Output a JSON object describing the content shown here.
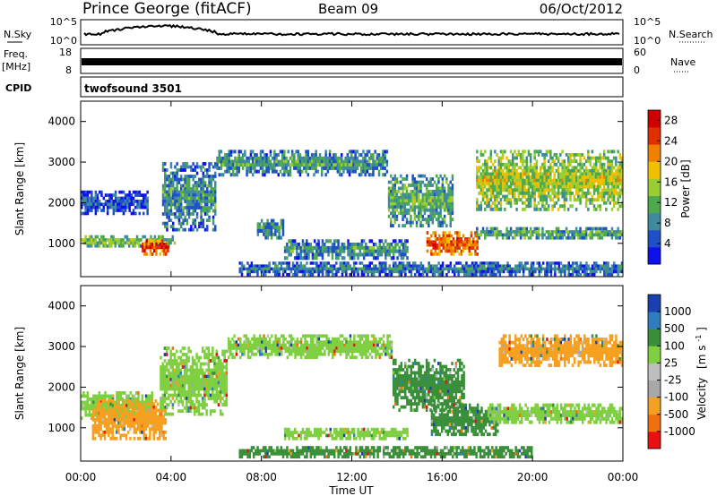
{
  "header": {
    "station": "Prince George (fitACF)",
    "beam": "Beam 09",
    "date": "06/Oct/2012"
  },
  "info_panels": {
    "nsky_label": "N.Sky",
    "nsearch_label": "N.Search",
    "noise_top": "10^5",
    "noise_bottom": "10^0",
    "freq_label_line1": "Freq.",
    "freq_label_line2": "[MHz]",
    "freq_top": "18",
    "freq_bottom": "8",
    "nave_label": "Nave",
    "nave_top": "60",
    "nave_bottom": "0",
    "cpid_label": "CPID",
    "cpid_value": "twofsound 3501"
  },
  "chart_data": [
    {
      "type": "heatmap",
      "name": "power",
      "ylabel": "Slant Range [km]",
      "xlabel": "Time UT",
      "x_ticks": [
        "00:00",
        "04:00",
        "08:00",
        "12:00",
        "16:00",
        "20:00",
        "00:00"
      ],
      "xlim": [
        0,
        24
      ],
      "ylim": [
        180,
        4500
      ],
      "y_ticks": [
        1000,
        2000,
        3000,
        4000
      ],
      "colorbar": {
        "label": "Power [dB]",
        "ticks": [
          4,
          8,
          12,
          16,
          20,
          24,
          28
        ],
        "range": [
          0,
          30
        ],
        "colors": [
          "#1010ee",
          "#2050c8",
          "#3f8a9f",
          "#4daa4d",
          "#9acd32",
          "#f0c000",
          "#f08000",
          "#e03000",
          "#d00000"
        ]
      },
      "bands": [
        {
          "t_start": 0.0,
          "t_end": 4.2,
          "range_start": 900,
          "range_end": 1200,
          "value": 14
        },
        {
          "t_start": 2.7,
          "t_end": 3.9,
          "range_start": 700,
          "range_end": 1100,
          "value": 26
        },
        {
          "t_start": 0.0,
          "t_end": 3.0,
          "range_start": 1700,
          "range_end": 2300,
          "value": 6
        },
        {
          "t_start": 3.6,
          "t_end": 6.0,
          "range_start": 1300,
          "range_end": 3000,
          "value": 10
        },
        {
          "t_start": 6.0,
          "t_end": 13.6,
          "range_start": 2650,
          "range_end": 3300,
          "value": 10
        },
        {
          "t_start": 13.6,
          "t_end": 16.5,
          "range_start": 1400,
          "range_end": 2700,
          "value": 12
        },
        {
          "t_start": 7.8,
          "t_end": 9.0,
          "range_start": 1100,
          "range_end": 1600,
          "value": 10
        },
        {
          "t_start": 9.0,
          "t_end": 14.5,
          "range_start": 600,
          "range_end": 1100,
          "value": 10
        },
        {
          "t_start": 15.3,
          "t_end": 17.6,
          "range_start": 700,
          "range_end": 1300,
          "value": 24
        },
        {
          "t_start": 17.5,
          "t_end": 24.0,
          "range_start": 1100,
          "range_end": 1400,
          "value": 12
        },
        {
          "t_start": 17.5,
          "t_end": 24.0,
          "range_start": 1800,
          "range_end": 3300,
          "value": 16
        },
        {
          "t_start": 7.0,
          "t_end": 24.0,
          "range_start": 200,
          "range_end": 550,
          "value": 8
        }
      ]
    },
    {
      "type": "heatmap",
      "name": "velocity",
      "ylabel": "Slant Range [km]",
      "xlabel": "Time UT",
      "x_ticks": [
        "00:00",
        "04:00",
        "08:00",
        "12:00",
        "16:00",
        "20:00",
        "00:00"
      ],
      "xlim": [
        0,
        24
      ],
      "ylim": [
        180,
        4500
      ],
      "y_ticks": [
        1000,
        2000,
        3000,
        4000
      ],
      "colorbar": {
        "label": "Velocity",
        "unit": "[m s",
        "unit_exp": "-1",
        "unit_end": "]",
        "ticks": [
          "1000",
          "500",
          "100",
          "25",
          "-25",
          "-100",
          "-500",
          "-1000"
        ],
        "colors": [
          "#1a3fb0",
          "#2f7cbf",
          "#3a8f3a",
          "#7fd040",
          "#bebebe",
          "#a8a8a8",
          "#f5a020",
          "#f07010",
          "#e81010"
        ]
      },
      "bands": [
        {
          "t_start": 0.0,
          "t_end": 3.2,
          "range_start": 1200,
          "range_end": 1900,
          "value": "25"
        },
        {
          "t_start": 0.5,
          "t_end": 3.8,
          "range_start": 700,
          "range_end": 1700,
          "value": "-100"
        },
        {
          "t_start": 3.5,
          "t_end": 6.5,
          "range_start": 1300,
          "range_end": 3000,
          "value": "25"
        },
        {
          "t_start": 6.5,
          "t_end": 13.8,
          "range_start": 2700,
          "range_end": 3300,
          "value": "25"
        },
        {
          "t_start": 13.8,
          "t_end": 17.0,
          "range_start": 1400,
          "range_end": 2700,
          "value": "100"
        },
        {
          "t_start": 9.0,
          "t_end": 14.5,
          "range_start": 700,
          "range_end": 1000,
          "value": "25"
        },
        {
          "t_start": 15.5,
          "t_end": 18.5,
          "range_start": 800,
          "range_end": 1600,
          "value": "100"
        },
        {
          "t_start": 18.0,
          "t_end": 24.0,
          "range_start": 1100,
          "range_end": 1600,
          "value": "25"
        },
        {
          "t_start": 18.5,
          "t_end": 24.0,
          "range_start": 2500,
          "range_end": 3300,
          "value": "-100"
        },
        {
          "t_start": 7.0,
          "t_end": 20.0,
          "range_start": 250,
          "range_end": 550,
          "value": "100"
        }
      ]
    }
  ]
}
